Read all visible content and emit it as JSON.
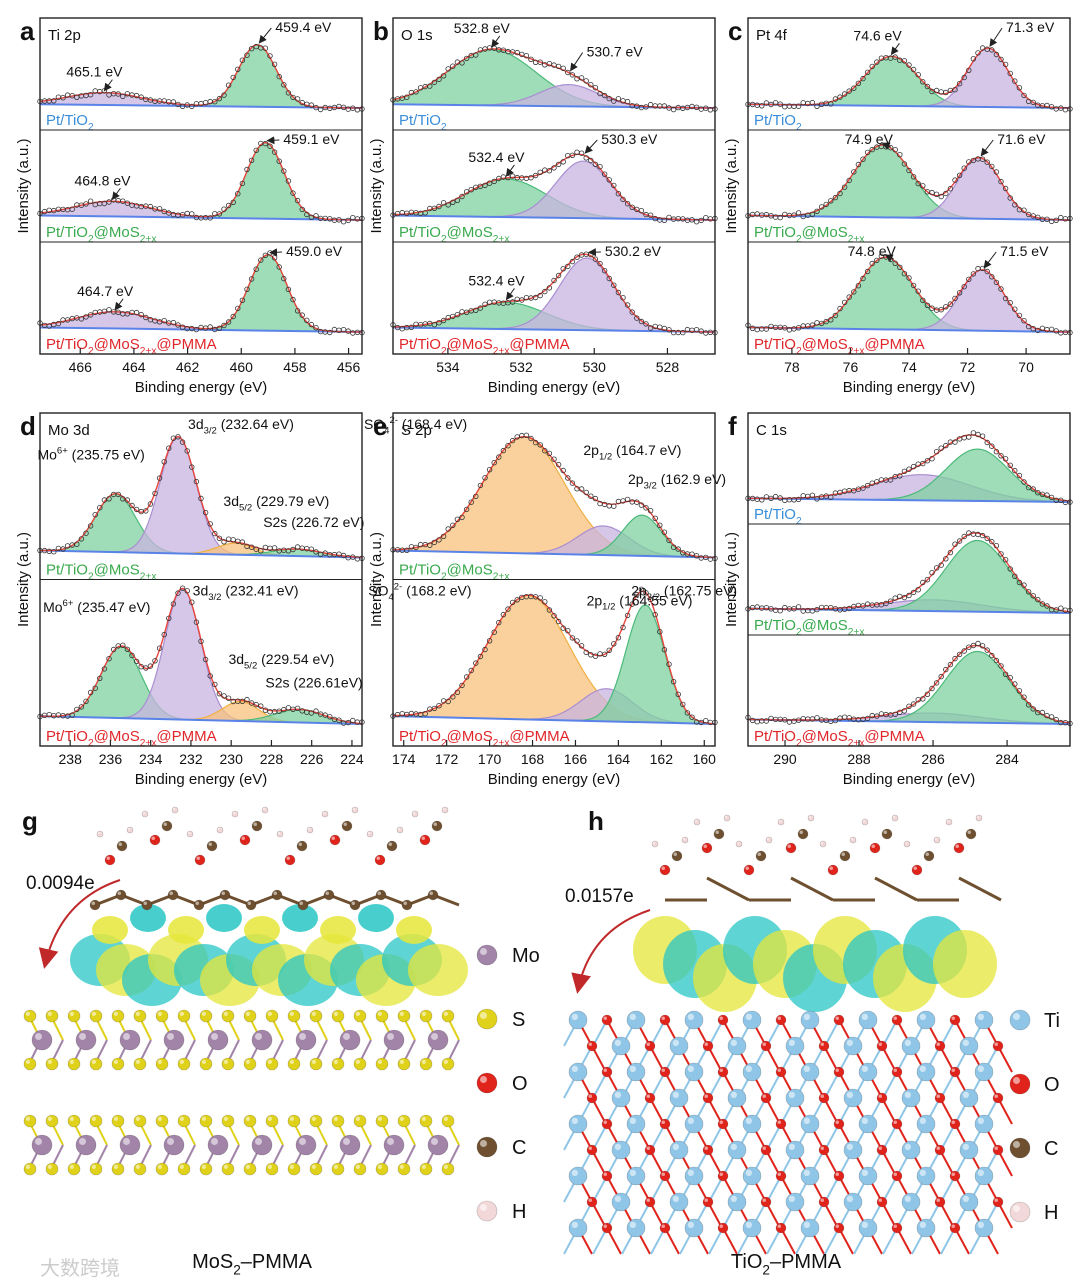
{
  "colors": {
    "fit_red": "#e8453c",
    "green_fill": "#7fd0a0",
    "green_line": "#4cba7a",
    "purple_fill": "#c8b4e0",
    "purple_line": "#a98ed0",
    "orange_fill": "#f8c07c",
    "orange_line": "#f0b040",
    "baseline": "#5a83e8",
    "label_blue": "#3a8dd8",
    "label_green": "#3aaa4e",
    "label_red": "#e0262a",
    "charge_yellow": "#e6e63a",
    "charge_cyan": "#29c6c6",
    "atom_mo": "#a284a8",
    "atom_s": "#e0d21a",
    "atom_o": "#e0241c",
    "atom_c": "#6e5030",
    "atom_h": "#f2d8d8",
    "atom_ti": "#8fc6e8"
  },
  "samples": {
    "a": "Pt/TiO",
    "b": "Pt/TiO",
    "c": "Pt/TiO"
  },
  "chart_data": [
    {
      "panel": "a",
      "type": "line",
      "title": "Ti 2p",
      "xlabel": "Binding energy (eV)",
      "ylabel": "Intensity (a.u.)",
      "xlim": [
        467.5,
        455.5
      ],
      "xticks": [
        466,
        464,
        462,
        460,
        458,
        456
      ],
      "stacks": [
        {
          "sample": [
            "Pt/TiO",
            "2",
            ""
          ],
          "sample_color": "label_blue",
          "peaks": [
            {
              "label": "465.1 eV",
              "center": 465.1,
              "height": 0.2,
              "width": 1.4,
              "color": "purple"
            },
            {
              "label": "459.4 eV",
              "center": 459.4,
              "height": 1.0,
              "width": 0.7,
              "color": "green"
            }
          ]
        },
        {
          "sample": [
            "Pt/TiO",
            "2",
            "@MoS",
            "2+x",
            ""
          ],
          "sample_color": "label_green",
          "peaks": [
            {
              "label": "464.8 eV",
              "center": 464.8,
              "height": 0.2,
              "width": 1.4,
              "color": "purple"
            },
            {
              "label": "459.1 eV",
              "center": 459.1,
              "height": 1.0,
              "width": 0.7,
              "color": "green"
            }
          ]
        },
        {
          "sample": [
            "Pt/TiO",
            "2",
            "@MoS",
            "2+x",
            "@PMMA"
          ],
          "sample_color": "label_red",
          "peaks": [
            {
              "label": "464.7 eV",
              "center": 464.7,
              "height": 0.22,
              "width": 1.4,
              "color": "purple"
            },
            {
              "label": "459.0 eV",
              "center": 459.0,
              "height": 1.0,
              "width": 0.7,
              "color": "green"
            }
          ]
        }
      ]
    },
    {
      "panel": "b",
      "type": "line",
      "title": "O 1s",
      "xlabel": "Binding energy (eV)",
      "ylabel": "Intensity (a.u.)",
      "xlim": [
        535.5,
        526.7
      ],
      "xticks": [
        534,
        532,
        530,
        528
      ],
      "stacks": [
        {
          "sample": [
            "Pt/TiO",
            "2",
            ""
          ],
          "sample_color": "label_blue",
          "peaks": [
            {
              "label": "532.8 eV",
              "center": 532.8,
              "height": 0.9,
              "width": 1.2,
              "color": "green"
            },
            {
              "label": "530.7 eV",
              "center": 530.7,
              "height": 0.35,
              "width": 0.8,
              "color": "purple"
            }
          ]
        },
        {
          "sample": [
            "Pt/TiO",
            "2",
            "@MoS",
            "2+x",
            ""
          ],
          "sample_color": "label_green",
          "peaks": [
            {
              "label": "532.4 eV",
              "center": 532.4,
              "height": 0.5,
              "width": 1.1,
              "color": "green"
            },
            {
              "label": "530.3 eV",
              "center": 530.3,
              "height": 0.75,
              "width": 0.75,
              "color": "purple"
            }
          ]
        },
        {
          "sample": [
            "Pt/TiO",
            "2",
            "@MoS",
            "2+x",
            "@PMMA"
          ],
          "sample_color": "label_red",
          "peaks": [
            {
              "label": "532.4 eV",
              "center": 532.4,
              "height": 0.35,
              "width": 1.1,
              "color": "green"
            },
            {
              "label": "530.2 eV",
              "center": 530.2,
              "height": 0.95,
              "width": 0.75,
              "color": "purple"
            }
          ]
        }
      ]
    },
    {
      "panel": "c",
      "type": "line",
      "title": "Pt 4f",
      "xlabel": "Binding energy (eV)",
      "ylabel": "Intensity (a.u.)",
      "xlim": [
        79.5,
        68.5
      ],
      "xticks": [
        78,
        76,
        74,
        72,
        70
      ],
      "stacks": [
        {
          "sample": [
            "Pt/TiO",
            "2",
            ""
          ],
          "sample_color": "label_blue",
          "peaks": [
            {
              "label": "74.6 eV",
              "center": 74.6,
              "height": 0.8,
              "width": 0.9,
              "color": "green"
            },
            {
              "label": "71.3 eV",
              "center": 71.3,
              "height": 0.95,
              "width": 0.7,
              "color": "purple"
            }
          ]
        },
        {
          "sample": [
            "Pt/TiO",
            "2",
            "@MoS",
            "2+x",
            ""
          ],
          "sample_color": "label_green",
          "peaks": [
            {
              "label": "74.9 eV",
              "center": 74.9,
              "height": 0.95,
              "width": 1.0,
              "color": "green"
            },
            {
              "label": "71.6 eV",
              "center": 71.6,
              "height": 0.8,
              "width": 0.75,
              "color": "purple"
            }
          ]
        },
        {
          "sample": [
            "Pt/TiO",
            "2",
            "@MoS",
            "2+x",
            "@PMMA"
          ],
          "sample_color": "label_red",
          "peaks": [
            {
              "label": "74.8 eV",
              "center": 74.8,
              "height": 0.95,
              "width": 0.95,
              "color": "green"
            },
            {
              "label": "71.5 eV",
              "center": 71.5,
              "height": 0.8,
              "width": 0.75,
              "color": "purple"
            }
          ]
        }
      ]
    },
    {
      "panel": "d",
      "type": "line",
      "title": "Mo 3d",
      "xlabel": "Binding energy (eV)",
      "ylabel": "Intensity (a.u.)",
      "xlim": [
        239.5,
        223.5
      ],
      "xticks": [
        238,
        236,
        234,
        232,
        230,
        228,
        226,
        224
      ],
      "stacks": [
        {
          "sample": [
            "Pt/TiO",
            "2",
            "@MoS",
            "2+x",
            ""
          ],
          "sample_color": "label_green",
          "peaks": [
            {
              "label": [
                "Mo",
                "6+",
                " (235.75 eV)"
              ],
              "center": 235.75,
              "height": 0.5,
              "width": 1.0,
              "color": "green"
            },
            {
              "label": [
                "3d",
                "3/2",
                " (232.64 eV)"
              ],
              "center": 232.64,
              "height": 1.0,
              "width": 0.9,
              "color": "purple"
            },
            {
              "label": [
                "3d",
                "5/2",
                " (229.79 eV)"
              ],
              "center": 229.79,
              "height": 0.1,
              "width": 0.9,
              "color": "orange"
            },
            {
              "label": [
                "S2s (226.72 eV)"
              ],
              "center": 226.72,
              "height": 0.06,
              "width": 1.2,
              "color": "green"
            }
          ]
        },
        {
          "sample": [
            "Pt/TiO",
            "2",
            "@MoS",
            "2+x",
            "@PMMA"
          ],
          "sample_color": "label_red",
          "peaks": [
            {
              "label": [
                "Mo",
                "6+",
                " (235.47 eV)"
              ],
              "center": 235.47,
              "height": 0.55,
              "width": 1.0,
              "color": "green"
            },
            {
              "label": [
                "3d",
                "3/2",
                " (232.41 eV)"
              ],
              "center": 232.41,
              "height": 1.0,
              "width": 0.9,
              "color": "purple"
            },
            {
              "label": [
                "3d",
                "5/2",
                " (229.54 eV)"
              ],
              "center": 229.54,
              "height": 0.15,
              "width": 0.9,
              "color": "orange"
            },
            {
              "label": [
                "S2s (226.61eV)"
              ],
              "center": 226.61,
              "height": 0.1,
              "width": 1.2,
              "color": "green"
            }
          ]
        }
      ]
    },
    {
      "panel": "e",
      "type": "line",
      "title": "S 2p",
      "xlabel": "Binding energy (eV)",
      "ylabel": "Intensity (a.u.)",
      "xlim": [
        174.5,
        159.5
      ],
      "xticks": [
        174,
        172,
        170,
        168,
        166,
        164,
        162,
        160
      ],
      "stacks": [
        {
          "sample": [
            "Pt/TiO",
            "2",
            "@MoS",
            "2+x",
            ""
          ],
          "sample_color": "label_green",
          "peaks": [
            {
              "label": [
                "SO",
                "4",
                "2-",
                " (168.4 eV)"
              ],
              "center": 168.4,
              "height": 1.0,
              "width": 1.9,
              "color": "orange"
            },
            {
              "label": [
                "2p",
                "1/2",
                " (164.7 eV)"
              ],
              "center": 164.7,
              "height": 0.25,
              "width": 1.2,
              "color": "purple"
            },
            {
              "label": [
                "2p",
                "3/2",
                " (162.9 eV)"
              ],
              "center": 162.9,
              "height": 0.35,
              "width": 0.9,
              "color": "green"
            }
          ]
        },
        {
          "sample": [
            "Pt/TiO",
            "2",
            "@MoS",
            "2+x",
            "@PMMA"
          ],
          "sample_color": "label_red",
          "peaks": [
            {
              "label": [
                "SO",
                "4",
                "2-",
                " (168.2 eV)"
              ],
              "center": 168.2,
              "height": 0.95,
              "width": 1.9,
              "color": "orange"
            },
            {
              "label": [
                "2p",
                "1/2",
                " (164.55 eV)"
              ],
              "center": 164.55,
              "height": 0.25,
              "width": 1.2,
              "color": "purple"
            },
            {
              "label": [
                "2p",
                "3/2",
                " (162.75 eV)"
              ],
              "center": 162.75,
              "height": 0.9,
              "width": 0.9,
              "color": "green"
            }
          ]
        }
      ]
    },
    {
      "panel": "f",
      "type": "line",
      "title": "C 1s",
      "xlabel": "Binding energy (eV)",
      "ylabel": "Intensity (a.u.)",
      "xlim": [
        291,
        282.3
      ],
      "xticks": [
        290,
        288,
        286,
        284
      ],
      "stacks": [
        {
          "sample": [
            "Pt/TiO",
            "2",
            ""
          ],
          "sample_color": "label_blue",
          "peaks": [
            {
              "label": "",
              "center": 286.3,
              "height": 0.42,
              "width": 1.3,
              "color": "purple"
            },
            {
              "label": "",
              "center": 284.8,
              "height": 0.85,
              "width": 0.85,
              "color": "green"
            }
          ]
        },
        {
          "sample": [
            "Pt/TiO",
            "2",
            "@MoS",
            "2+x",
            ""
          ],
          "sample_color": "label_green",
          "peaks": [
            {
              "label": "",
              "center": 286.0,
              "height": 0.15,
              "width": 1.3,
              "color": "purple"
            },
            {
              "label": "",
              "center": 284.8,
              "height": 0.95,
              "width": 0.85,
              "color": "green"
            }
          ]
        },
        {
          "sample": [
            "Pt/TiO",
            "2",
            "@MoS",
            "2+x",
            "@PMMA"
          ],
          "sample_color": "label_red",
          "peaks": [
            {
              "label": "",
              "center": 286.0,
              "height": 0.12,
              "width": 1.3,
              "color": "purple"
            },
            {
              "label": "",
              "center": 284.8,
              "height": 0.95,
              "width": 0.85,
              "color": "green"
            }
          ]
        }
      ]
    }
  ],
  "panels_gh": [
    {
      "letter": "g",
      "transfer": "0.0094e",
      "caption": [
        "MoS",
        "2",
        "–PMMA"
      ],
      "legend": [
        {
          "name": "Mo",
          "atom": "atom_mo"
        },
        {
          "name": "S",
          "atom": "atom_s"
        },
        {
          "name": "O",
          "atom": "atom_o"
        },
        {
          "name": "C",
          "atom": "atom_c"
        },
        {
          "name": "H",
          "atom": "atom_h"
        }
      ]
    },
    {
      "letter": "h",
      "transfer": "0.0157e",
      "caption": [
        "TiO",
        "2",
        "–PMMA"
      ],
      "legend": [
        {
          "name": "Ti",
          "atom": "atom_ti"
        },
        {
          "name": "O",
          "atom": "atom_o"
        },
        {
          "name": "C",
          "atom": "atom_c"
        },
        {
          "name": "H",
          "atom": "atom_h"
        }
      ]
    }
  ],
  "watermark": "大数跨境"
}
